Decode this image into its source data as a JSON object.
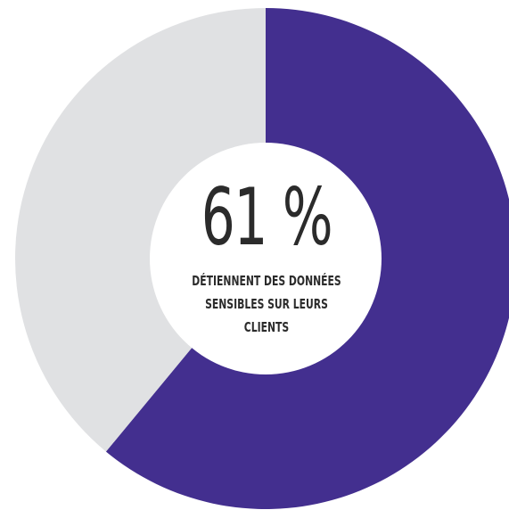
{
  "chart_data": {
    "type": "pie",
    "style": "donut",
    "slices": [
      {
        "value": 61,
        "color": "#432f8f"
      },
      {
        "value": 39,
        "color": "#e0e1e3"
      }
    ],
    "center_value": "61 %",
    "center_caption": "DÉTIENNENT DES DONNÉES SENSIBLES SUR LEURS CLIENTS",
    "center_fill": "#ffffff",
    "text_color": "#2b2b2b"
  }
}
